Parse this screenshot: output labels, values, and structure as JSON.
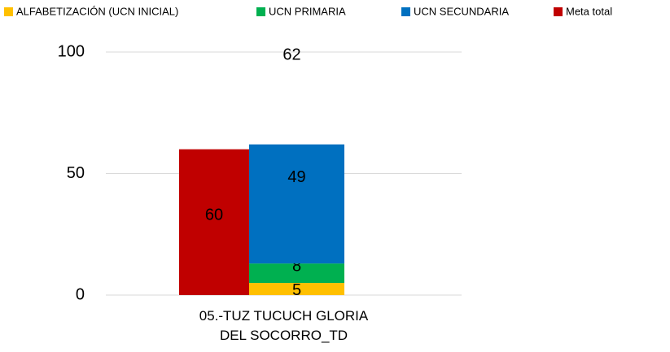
{
  "chart_data": {
    "type": "stacked-bar",
    "categories": [
      "05.-TUZ TUCUCH GLORIA DEL SOCORRO_TD"
    ],
    "series": [
      {
        "name": "ALFABETIZACIÓN (UCN INICIAL)",
        "color": "#ffc000",
        "values": [
          5
        ],
        "stack": 1
      },
      {
        "name": "UCN PRIMARIA",
        "color": "#00b050",
        "values": [
          8
        ],
        "stack": 1
      },
      {
        "name": "UCN SECUNDARIA",
        "color": "#0070c0",
        "values": [
          49
        ],
        "stack": 1
      },
      {
        "name": "Meta total",
        "color": "#c00000",
        "values": [
          60
        ],
        "stack": 0
      }
    ],
    "total": 62,
    "ylim": [
      0,
      100
    ],
    "yticks": [
      0,
      50,
      100
    ],
    "grid": true,
    "legend": "top"
  }
}
